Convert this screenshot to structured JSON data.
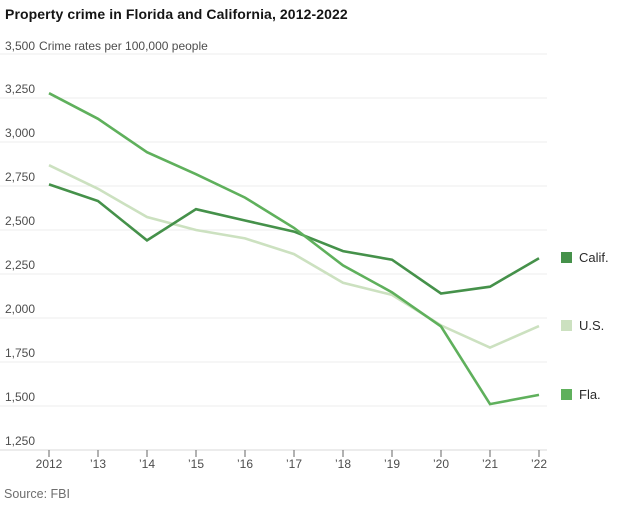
{
  "title": "Property crime in Florida and California, 2012-2022",
  "y_axis": {
    "top_tick": "3,500",
    "unit_label": "Crime rates per 100,000 people",
    "tick_labels": [
      "3,500",
      "3,250",
      "3,000",
      "2,750",
      "2,500",
      "2,250",
      "2,000",
      "1,750",
      "1,500",
      "1,250"
    ],
    "tick_values": [
      3500,
      3250,
      3000,
      2750,
      2500,
      2250,
      2000,
      1750,
      1500,
      1250
    ]
  },
  "x_axis": {
    "tick_labels": [
      "2012",
      "’13",
      "’14",
      "’15",
      "’16",
      "’17",
      "’18",
      "’19",
      "’20",
      "’21",
      "’22"
    ]
  },
  "source": "Source: FBI",
  "colors": {
    "calif_line": "#45914a",
    "us_line": "#cce1c0",
    "fla_line": "#5fb05c",
    "gridline": "#ececec",
    "axis_line": "#d9d9d9",
    "tick_mark": "#666666"
  },
  "chart_data": {
    "type": "line",
    "title": "Property crime in Florida and California, 2012-2022",
    "ylabel": "Crime rates per 100,000 people",
    "x": [
      2012,
      2013,
      2014,
      2015,
      2016,
      2017,
      2018,
      2019,
      2020,
      2021,
      2022
    ],
    "ylim": [
      1250,
      3500
    ],
    "grid": true,
    "legend_position": "right",
    "series": [
      {
        "name": "Calif.",
        "color": "#45914a",
        "values": [
          2759,
          2665,
          2441,
          2618,
          2554,
          2491,
          2380,
          2331,
          2139,
          2178,
          2340
        ]
      },
      {
        "name": "U.S.",
        "color": "#cce1c0",
        "values": [
          2868,
          2734,
          2574,
          2500,
          2452,
          2363,
          2200,
          2131,
          1958,
          1832,
          1954
        ]
      },
      {
        "name": "Fla.",
        "color": "#5fb05c",
        "values": [
          3277,
          3132,
          2942,
          2817,
          2684,
          2512,
          2299,
          2146,
          1952,
          1511,
          1563
        ]
      }
    ]
  }
}
